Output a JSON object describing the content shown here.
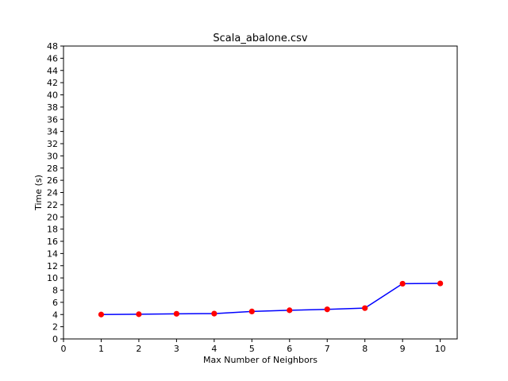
{
  "chart_data": {
    "type": "line",
    "title": "Scala_abalone.csv",
    "xlabel": "Max Number of Neighbors",
    "ylabel": "Time (s)",
    "xlim": [
      0,
      10.45
    ],
    "ylim": [
      0,
      48
    ],
    "xticks": [
      0,
      1,
      2,
      3,
      4,
      5,
      6,
      7,
      8,
      9,
      10
    ],
    "yticks": [
      0,
      2,
      4,
      6,
      8,
      10,
      12,
      14,
      16,
      18,
      20,
      22,
      24,
      26,
      28,
      30,
      32,
      34,
      36,
      38,
      40,
      42,
      44,
      46,
      48
    ],
    "grid": false,
    "line_color": "#0000ff",
    "marker_color": "#ff0000",
    "series": [
      {
        "x": [
          1,
          2,
          3,
          4,
          5,
          6,
          7,
          8,
          9,
          10
        ],
        "values": [
          4.0,
          4.05,
          4.12,
          4.15,
          4.5,
          4.7,
          4.85,
          5.05,
          9.05,
          9.1
        ]
      }
    ]
  }
}
